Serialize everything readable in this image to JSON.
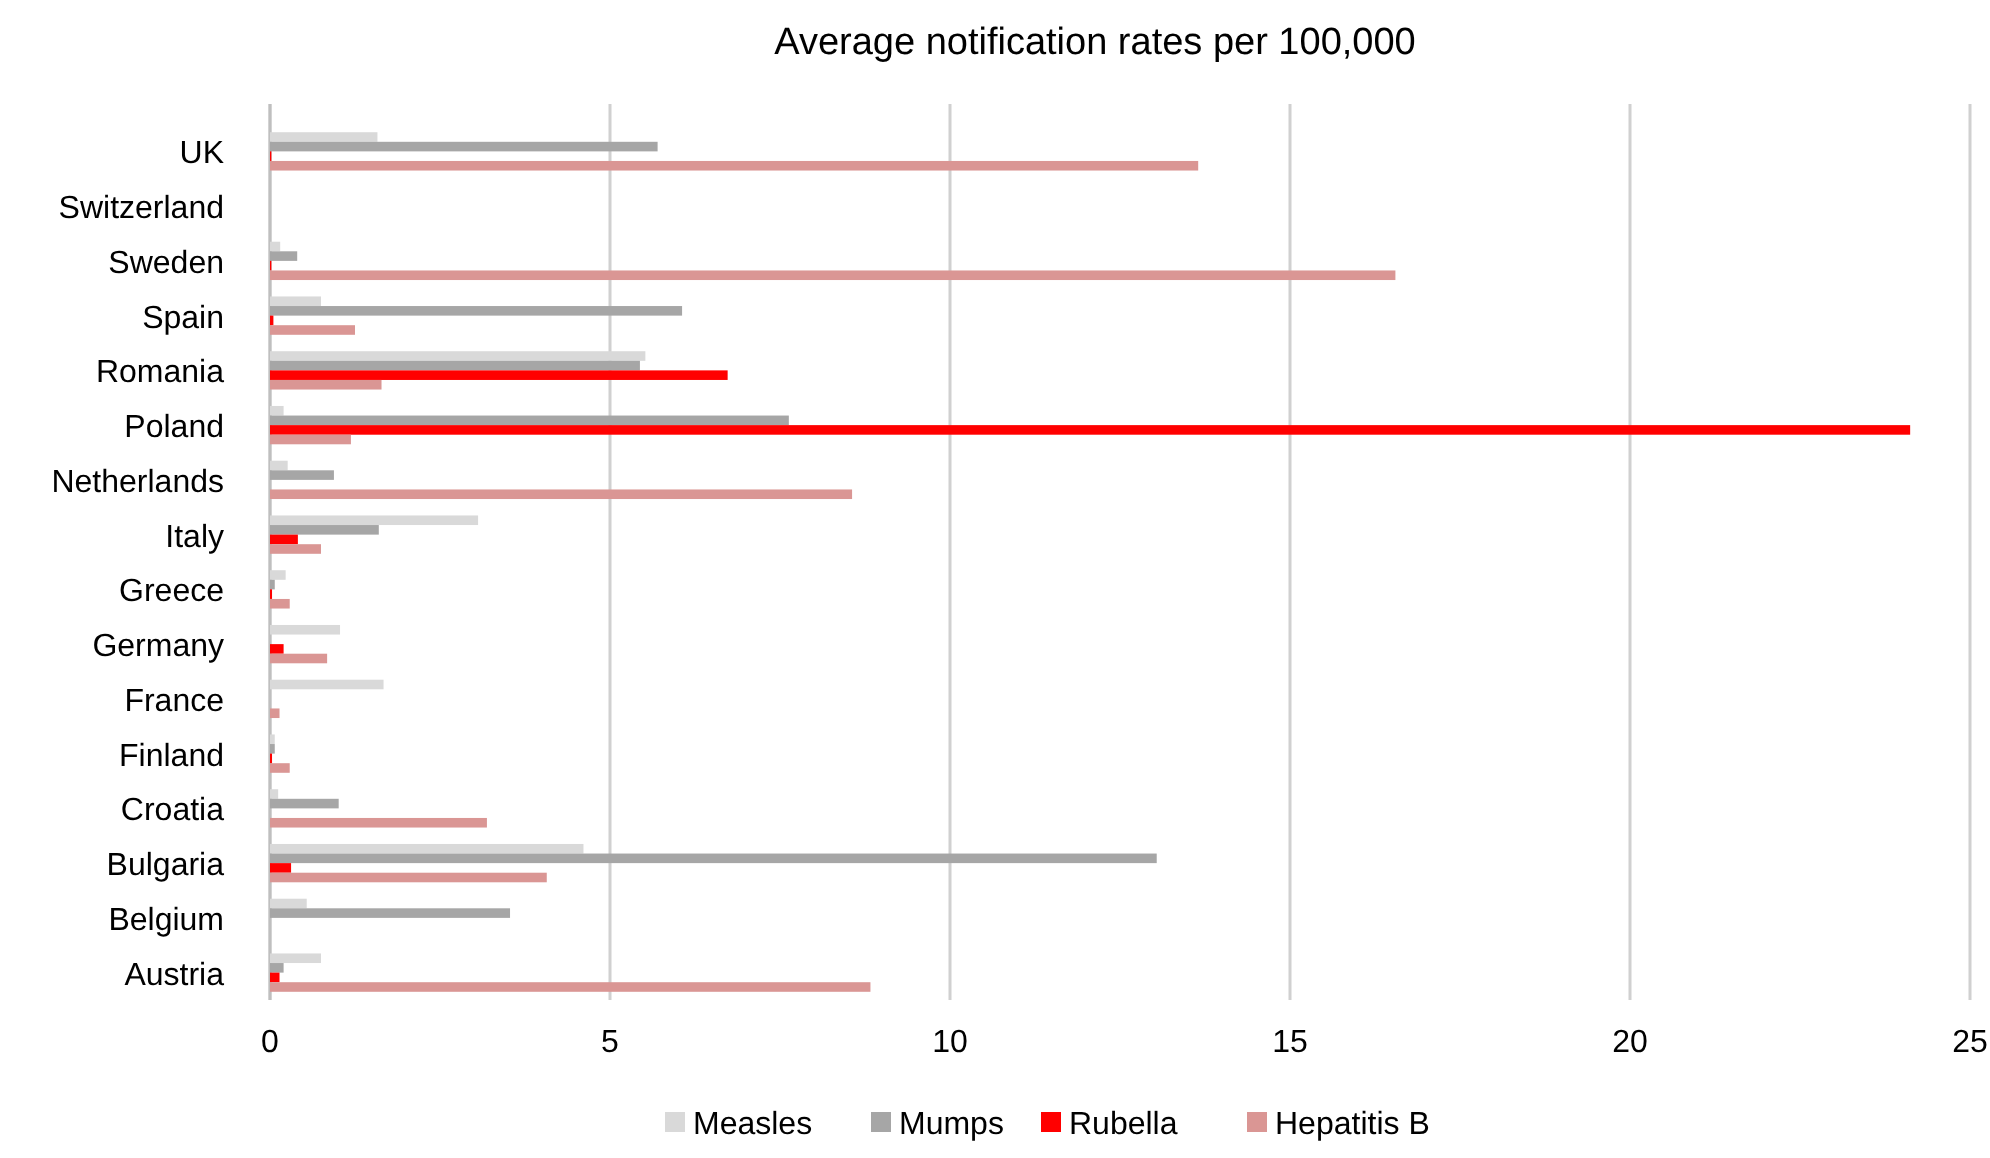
{
  "chart_data": {
    "type": "bar",
    "orientation": "horizontal",
    "title": "Average notification rates per 100,000",
    "categories": [
      "UK",
      "Switzerland",
      "Sweden",
      "Spain",
      "Romania",
      "Poland",
      "Netherlands",
      "Italy",
      "Greece",
      "Germany",
      "France",
      "Finland",
      "Croatia",
      "Bulgaria",
      "Belgium",
      "Austria"
    ],
    "series": [
      {
        "name": "Measles",
        "color": "#d9d9d9",
        "values": [
          1.58,
          null,
          0.15,
          0.75,
          5.52,
          0.2,
          0.26,
          3.06,
          0.23,
          1.03,
          1.67,
          0.07,
          0.12,
          4.61,
          0.54,
          0.75
        ]
      },
      {
        "name": "Mumps",
        "color": "#a6a6a6",
        "values": [
          5.7,
          null,
          0.4,
          6.06,
          5.44,
          7.63,
          0.94,
          1.6,
          0.07,
          null,
          null,
          0.07,
          1.01,
          13.04,
          3.53,
          0.2
        ]
      },
      {
        "name": "Rubella",
        "color": "#ff0000",
        "values": [
          0.02,
          null,
          0.02,
          0.05,
          6.73,
          24.12,
          null,
          0.41,
          0.03,
          0.2,
          null,
          0.03,
          null,
          0.31,
          null,
          0.14
        ]
      },
      {
        "name": "Hepatitis B",
        "color": "#da9694",
        "values": [
          13.65,
          null,
          16.55,
          1.25,
          1.64,
          1.19,
          8.56,
          0.75,
          0.29,
          0.84,
          0.14,
          0.29,
          3.19,
          4.07,
          null,
          8.83
        ]
      }
    ],
    "xlim": [
      0,
      25
    ],
    "xticks": [
      0,
      5,
      10,
      15,
      20,
      25
    ],
    "grid": "x",
    "legend": "bottom"
  }
}
